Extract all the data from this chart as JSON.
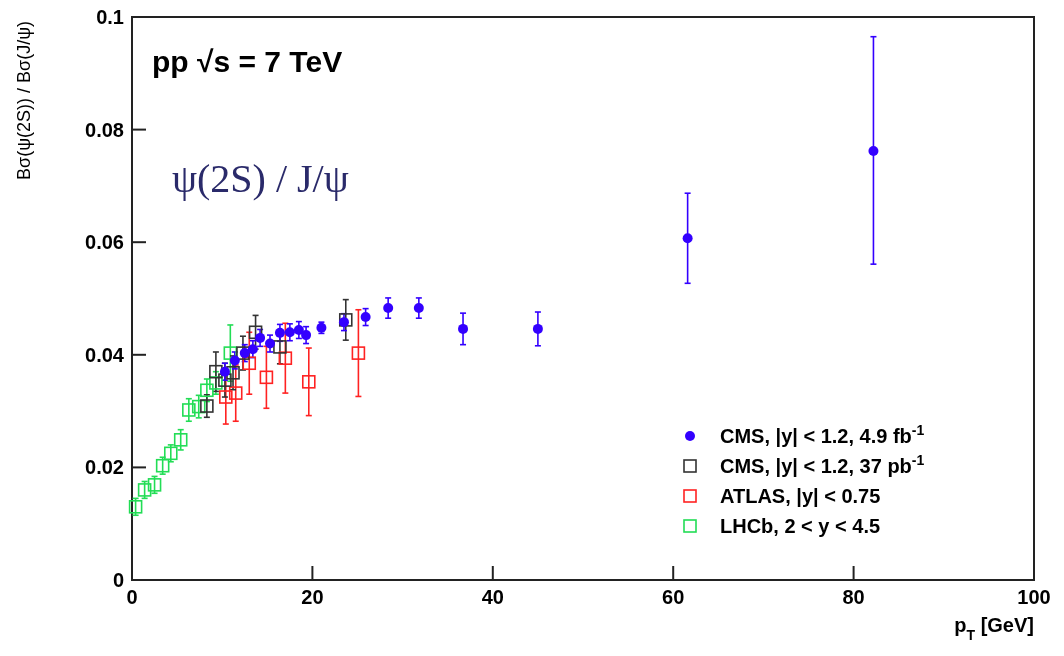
{
  "chart_data": {
    "type": "scatter",
    "xlabel": "p$_{T}$ [GeV]",
    "ylabel": "Bσ(ψ(2S)) / Bσ(J/ψ)",
    "annotations": [
      "pp  √s = 7 TeV",
      "ψ(2S) / J/ψ"
    ],
    "xlim": [
      0,
      100
    ],
    "xticks": [
      0,
      20,
      40,
      60,
      80,
      100
    ],
    "ylim": [
      0,
      0.1
    ],
    "yticks": [
      0,
      0.02,
      0.04,
      0.06,
      0.08,
      0.1
    ],
    "grid": false,
    "legend": "bottom right",
    "series": [
      {
        "name": "CMS, |y| < 1.2, 4.9 fb$^{-1}$",
        "color": "#3300ff",
        "marker": "circle",
        "x": [
          10.3,
          11.4,
          12.5,
          13.4,
          14.2,
          15.3,
          16.4,
          17.5,
          18.5,
          19.3,
          21,
          23.5,
          25.9,
          28.4,
          31.8,
          36.7,
          45,
          61.6,
          82.2
        ],
        "values": [
          0.037,
          0.039,
          0.0403,
          0.041,
          0.043,
          0.042,
          0.0439,
          0.044,
          0.0444,
          0.0435,
          0.0448,
          0.0458,
          0.0467,
          0.0483,
          0.0483,
          0.0446,
          0.0446,
          0.0607,
          0.0762
        ],
        "errors": [
          0.0015,
          0.0015,
          0.0015,
          0.0015,
          0.0015,
          0.0015,
          0.0015,
          0.0015,
          0.0015,
          0.0015,
          0.001,
          0.0015,
          0.0015,
          0.0018,
          0.0018,
          0.0028,
          0.003,
          [
            0.0527,
            0.0687
          ],
          [
            0.0561,
            0.0965
          ]
        ]
      },
      {
        "name": "CMS, |y| < 1.2, 37 pb$^{-1}$",
        "color": "#333333",
        "marker": "square",
        "x": [
          8.3,
          9.3,
          10.3,
          11.2,
          12.3,
          13.7,
          16.4,
          23.7
        ],
        "values": [
          0.0309,
          0.037,
          0.0355,
          0.0368,
          0.0403,
          0.044,
          0.0414,
          0.0462
        ],
        "errors": [
          0.002,
          0.0035,
          0.003,
          0.003,
          0.003,
          0.003,
          0.003,
          0.0036
        ]
      },
      {
        "name": "ATLAS, |y| < 0.75",
        "color": "#ff2222",
        "marker": "square",
        "x": [
          10.4,
          11.5,
          13,
          14.9,
          17,
          19.6,
          25.1
        ],
        "values": [
          0.0325,
          0.0332,
          0.0385,
          0.036,
          0.0394,
          0.0352,
          0.0403
        ],
        "errors": [
          0.0048,
          0.005,
          0.0055,
          0.0055,
          0.0062,
          0.006,
          0.0077
        ]
      },
      {
        "name": "LHCb, 2 < y < 4.5",
        "color": "#22dd55",
        "marker": "square",
        "x": [
          0.4,
          1.4,
          2.5,
          3.4,
          4.3,
          5.4,
          6.3,
          7.4,
          8.3,
          9.3,
          10.9
        ],
        "values": [
          0.013,
          0.016,
          0.0169,
          0.0203,
          0.0225,
          0.0249,
          0.0302,
          0.0308,
          0.0337,
          0.035,
          0.0403
        ],
        "errors": [
          0.0015,
          0.0015,
          0.0015,
          0.0015,
          0.0015,
          0.0018,
          0.002,
          0.002,
          0.002,
          0.002,
          0.005
        ]
      }
    ]
  }
}
